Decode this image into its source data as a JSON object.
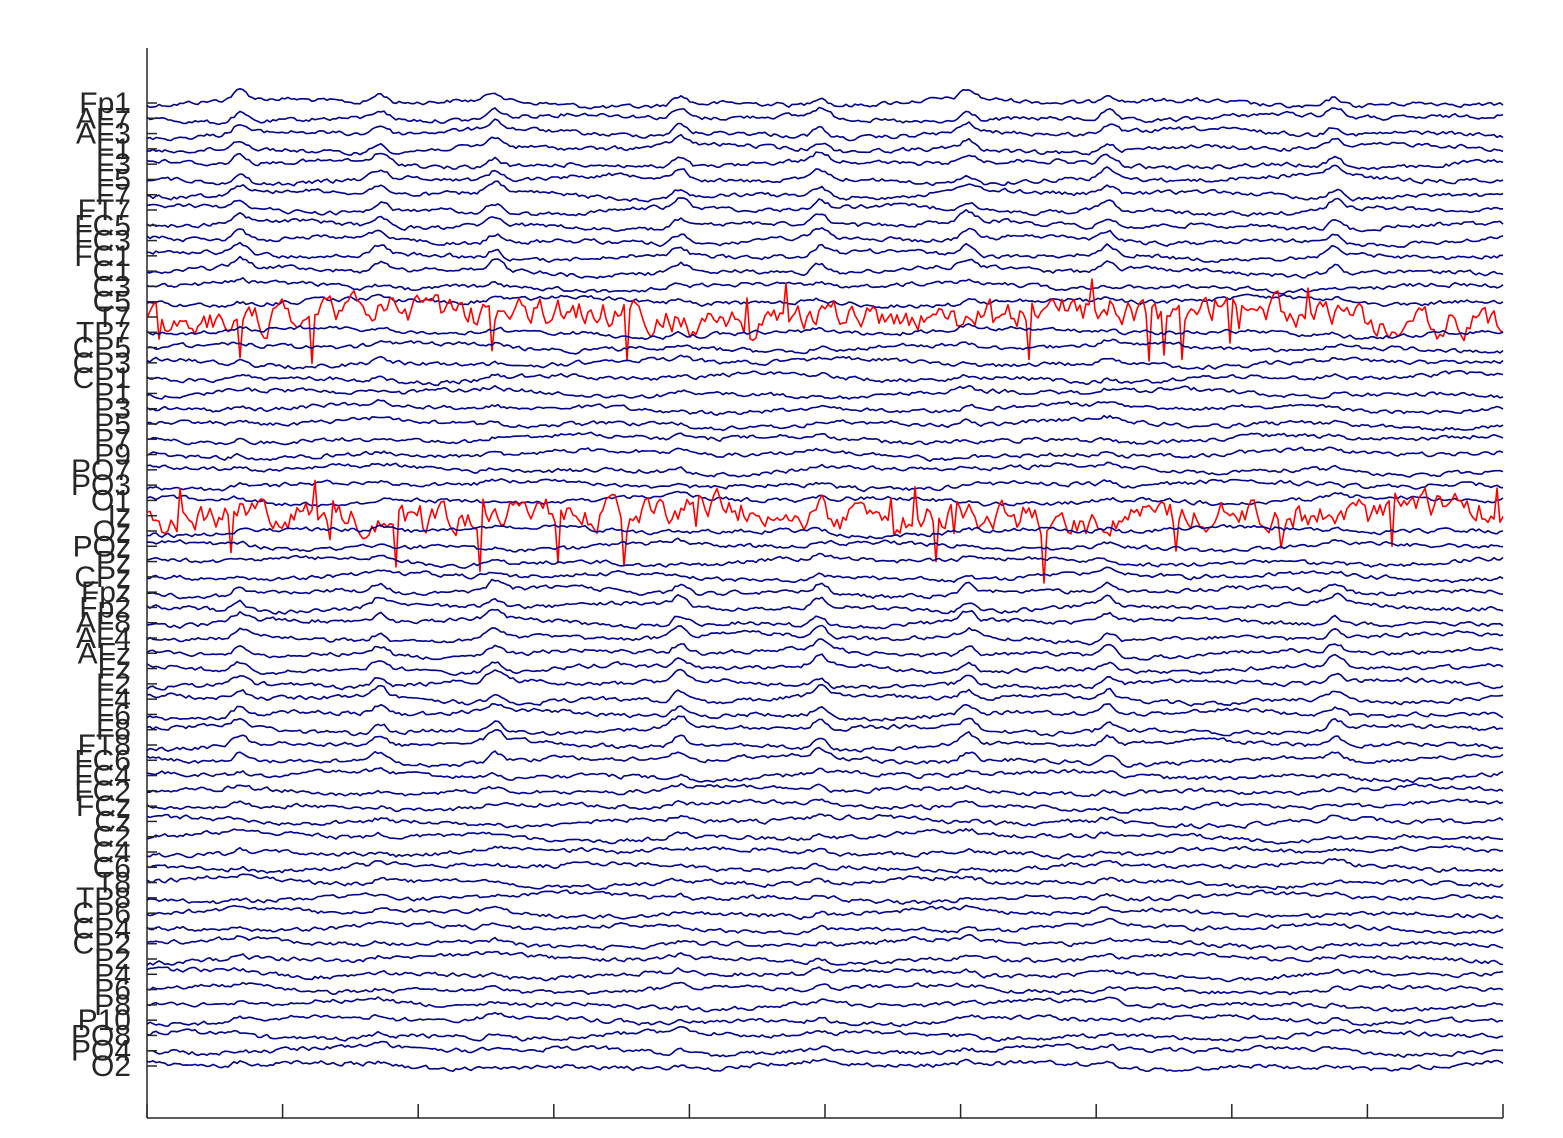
{
  "chart_data": {
    "type": "line",
    "title": "",
    "xlabel": "",
    "ylabel": "",
    "grid": false,
    "x_tick_labels_visible": false,
    "x_tick_count": 11,
    "channel_color": "#00008b",
    "highlight_color": "#ff0000",
    "channels": [
      "Fp1",
      "AF7",
      "AF3",
      "F1",
      "F3",
      "F5",
      "F7",
      "FT7",
      "FC5",
      "FC3",
      "FC1",
      "C1",
      "C3",
      "C5",
      "T7",
      "TP7",
      "CP5",
      "CP3",
      "CP1",
      "P1",
      "P3",
      "P5",
      "P7",
      "P9",
      "PO7",
      "PO3",
      "O1",
      "Iz",
      "Oz",
      "POz",
      "Pz",
      "CPz",
      "Fpz",
      "Fp2",
      "AF8",
      "AF4",
      "AFz",
      "Fz",
      "F2",
      "F4",
      "F6",
      "F8",
      "FT8",
      "FC6",
      "FC4",
      "FC2",
      "FCz",
      "Cz",
      "C2",
      "C4",
      "C6",
      "T8",
      "TP8",
      "CP6",
      "CP4",
      "CP2",
      "P2",
      "P4",
      "P6",
      "P8",
      "P10",
      "PO8",
      "PO4",
      "O2"
    ],
    "highlighted_channels": [
      "T7",
      "Iz"
    ],
    "series": []
  }
}
